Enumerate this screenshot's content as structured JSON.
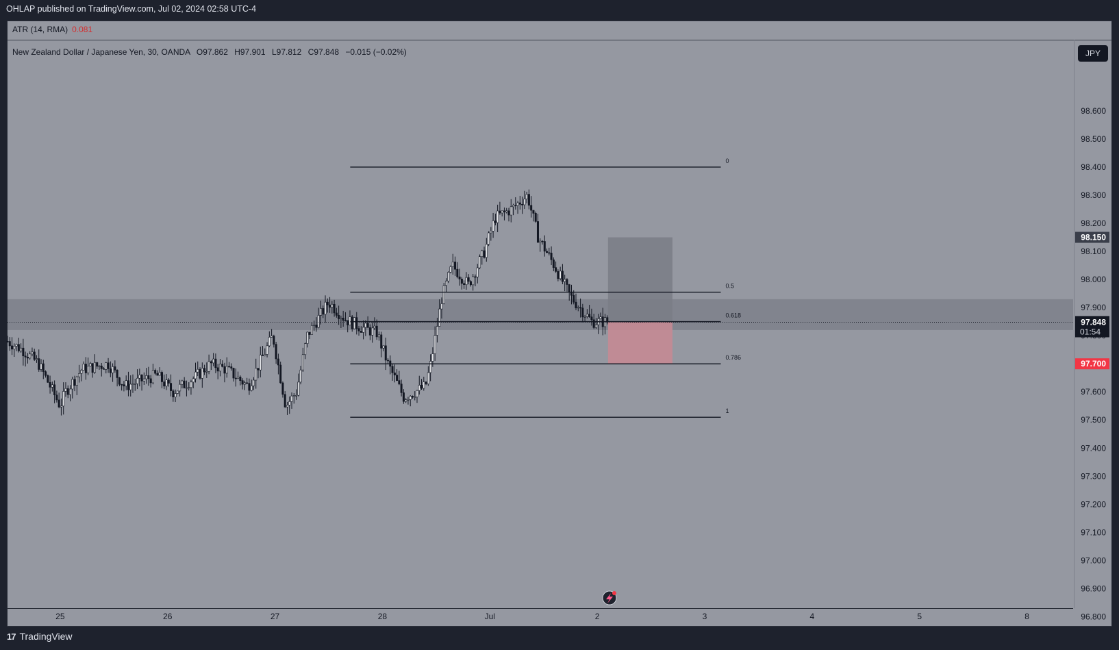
{
  "header": {
    "publisher_line": "OHLAP published on TradingView.com, Jul 02, 2024 02:58 UTC-4"
  },
  "indicator": {
    "name": "ATR (14, RMA)",
    "value": "0.081",
    "value_color": "#d32f2f"
  },
  "legend": {
    "symbol": "New Zealand Dollar / Japanese Yen, 30, OANDA",
    "o_key": "O",
    "o_val": "97.862",
    "h_key": "H",
    "h_val": "97.901",
    "l_key": "L",
    "l_val": "97.812",
    "c_key": "C",
    "c_val": "97.848",
    "change": "−0.015 (−0.02%)"
  },
  "currency_button": "JPY",
  "footer": {
    "logo": "17",
    "brand": "TradingView"
  },
  "chart_data": {
    "type": "candlestick",
    "instrument": "NZD/JPY",
    "timeframe": "30",
    "ylim": [
      96.75,
      98.78
    ],
    "y_ticks": [
      "98.600",
      "98.500",
      "98.400",
      "98.300",
      "98.200",
      "98.100",
      "98.000",
      "97.900",
      "97.800",
      "97.700",
      "97.600",
      "97.500",
      "97.400",
      "97.300",
      "97.200",
      "97.100",
      "97.000",
      "96.900",
      "96.800"
    ],
    "x_ticks": [
      "25",
      "26",
      "27",
      "28",
      "Jul",
      "2",
      "3",
      "4",
      "5",
      "8"
    ],
    "x_tick_days": [
      0,
      1,
      2,
      3,
      4,
      5,
      6,
      7,
      8,
      9
    ],
    "x_range_days": [
      -0.49,
      9.43
    ],
    "last_price": {
      "value": 97.848,
      "label": "97.848",
      "countdown": "01:54"
    },
    "price_tags": [
      {
        "value": 98.15,
        "label": "98.150",
        "color": "#3a3e4a"
      },
      {
        "value": 97.85,
        "label": "97.850",
        "color": "#3a3e4a"
      },
      {
        "value": 97.7,
        "label": "97.700",
        "color": "#f23645"
      }
    ],
    "zone": {
      "top": 97.93,
      "bottom": 97.82
    },
    "fibonacci": {
      "start_day": 2.7,
      "end_day": 6.15,
      "levels": [
        {
          "ratio": "0",
          "price": 98.4
        },
        {
          "ratio": "0.5",
          "price": 97.955
        },
        {
          "ratio": "0.618",
          "price": 97.85
        },
        {
          "ratio": "0.786",
          "price": 97.7
        },
        {
          "ratio": "1",
          "price": 97.51
        }
      ]
    },
    "position": {
      "start_day": 5.1,
      "end_day": 5.7,
      "entry": 97.85,
      "target": 98.15,
      "stop": 97.7
    },
    "candles_path_days": [
      -0.49,
      -0.35,
      -0.2,
      0.0,
      0.05,
      0.2,
      0.45,
      0.6,
      0.9,
      1.05,
      1.25,
      1.4,
      1.55,
      1.75,
      1.98,
      2.1,
      2.2,
      2.3,
      2.5,
      2.65,
      2.8,
      2.95,
      3.05,
      3.2,
      3.4,
      3.45,
      3.55,
      3.65,
      3.8,
      3.95,
      4.05,
      4.2,
      4.35,
      4.45,
      4.6,
      4.75,
      4.95,
      5.1
    ],
    "candles_path_prices": [
      97.78,
      97.75,
      97.7,
      97.55,
      97.6,
      97.68,
      97.7,
      97.62,
      97.66,
      97.6,
      97.65,
      97.7,
      97.68,
      97.62,
      97.8,
      97.55,
      97.6,
      97.8,
      97.92,
      97.86,
      97.83,
      97.81,
      97.7,
      97.58,
      97.62,
      97.7,
      97.93,
      98.05,
      97.98,
      98.1,
      98.22,
      98.25,
      98.3,
      98.15,
      98.05,
      97.94,
      97.85,
      97.85
    ]
  }
}
